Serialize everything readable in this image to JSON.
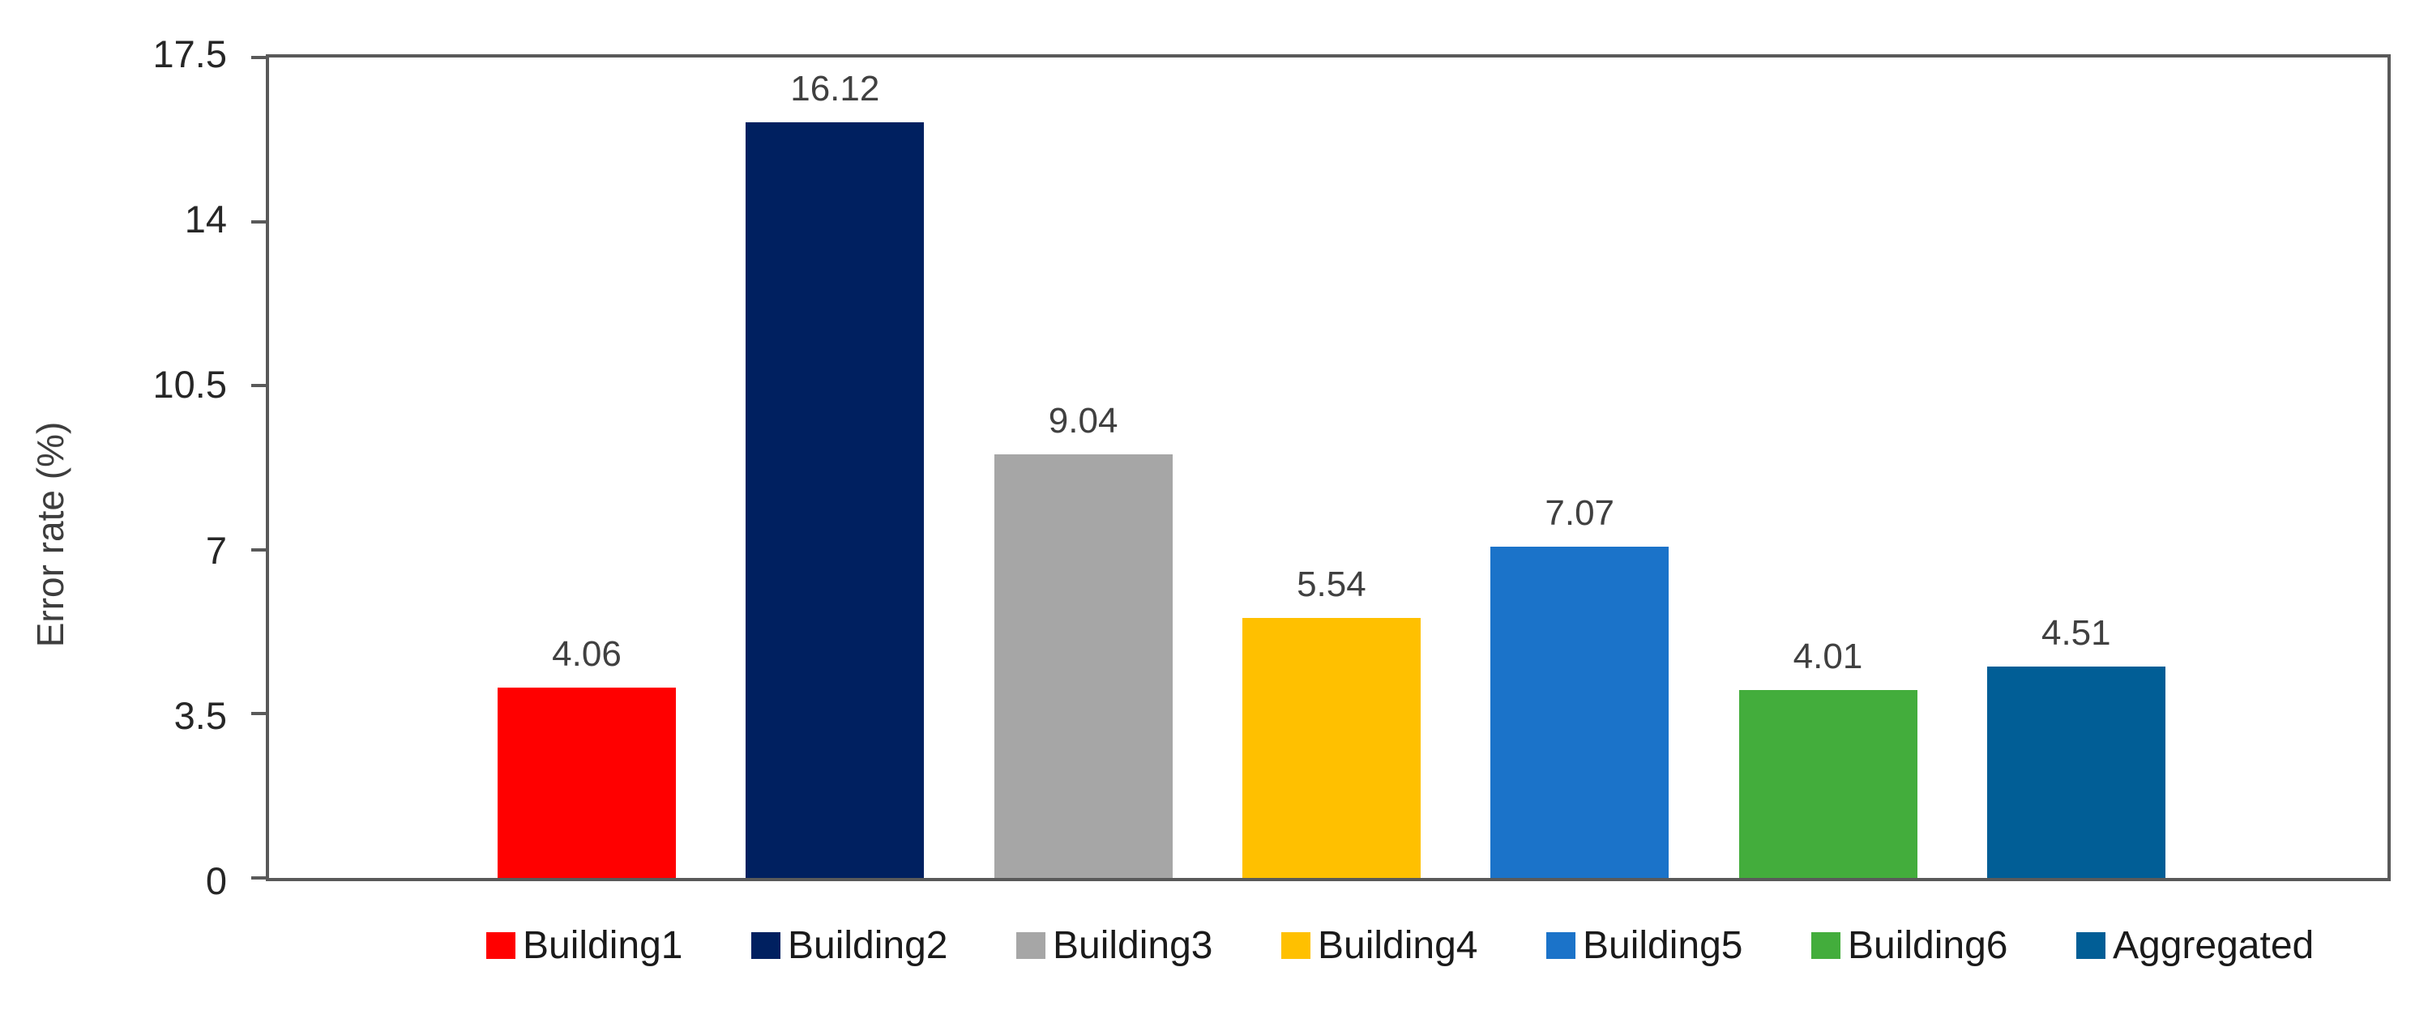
{
  "chart_data": {
    "type": "bar",
    "title": "",
    "xlabel": "",
    "ylabel": "Error rate (%)",
    "ylim": [
      0,
      17.5
    ],
    "yticks": [
      0,
      3.5,
      7,
      10.5,
      14,
      17.5
    ],
    "ytick_labels": [
      "0",
      "3.5",
      "7",
      "10.5",
      "14",
      "17.5"
    ],
    "grid": false,
    "plot_border": true,
    "legend_position": "bottom",
    "categories": [
      "Building1",
      "Building2",
      "Building3",
      "Building4",
      "Building5",
      "Building6",
      "Aggregated"
    ],
    "values": [
      4.06,
      16.12,
      9.04,
      5.54,
      7.07,
      4.01,
      4.51
    ],
    "data_labels": [
      "4.06",
      "16.12",
      "9.04",
      "5.54",
      "7.07",
      "4.01",
      "4.51"
    ],
    "series": [
      {
        "name": "Building1",
        "value": 4.06,
        "label": "4.06",
        "color": "#FF0000"
      },
      {
        "name": "Building2",
        "value": 16.12,
        "label": "16.12",
        "color": "#002060"
      },
      {
        "name": "Building3",
        "value": 9.04,
        "label": "9.04",
        "color": "#A6A6A6"
      },
      {
        "name": "Building4",
        "value": 5.54,
        "label": "5.54",
        "color": "#FFC000"
      },
      {
        "name": "Building5",
        "value": 7.07,
        "label": "7.07",
        "color": "#1B73C9"
      },
      {
        "name": "Building6",
        "value": 4.01,
        "label": "4.01",
        "color": "#43AD3C"
      },
      {
        "name": "Aggregated",
        "value": 4.51,
        "label": "4.51",
        "color": "#015E96"
      }
    ],
    "colors": {
      "axis_border": "#595959",
      "tick_label": "#262626",
      "data_label": "#404040",
      "axis_title": "#3d3d3d",
      "legend_text": "#1a1a1a",
      "background": "#ffffff"
    }
  }
}
